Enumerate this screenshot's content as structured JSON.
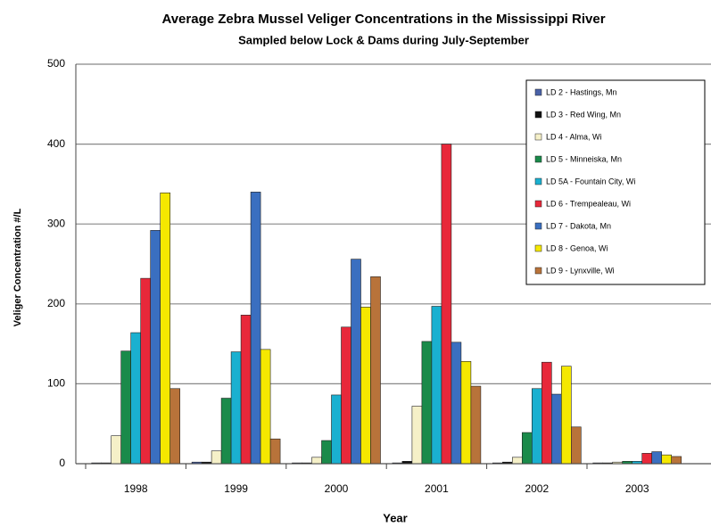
{
  "chart_data": {
    "type": "bar",
    "title": "Average Zebra Mussel Veliger Concentrations in the Mississippi River",
    "subtitle": "Sampled below Lock & Dams during July-September",
    "x_label": "Year",
    "y_label": "Veliger Concentration #/L",
    "categories": [
      "1998",
      "1999",
      "2000",
      "2001",
      "2002",
      "2003"
    ],
    "series": [
      {
        "name": "LD 2 - Hastings, Mn",
        "color": "#4a62a8",
        "values": [
          1,
          2,
          1,
          1,
          1,
          1
        ]
      },
      {
        "name": "LD 3 - Red Wing, Mn",
        "color": "#111111",
        "values": [
          1,
          2,
          1,
          3,
          2,
          1
        ]
      },
      {
        "name": "LD 4 - Alma, Wi",
        "color": "#f5f0c8",
        "values": [
          35,
          16,
          8,
          72,
          8,
          2
        ]
      },
      {
        "name": "LD 5 - Minneiska, Mn",
        "color": "#1a8a4a",
        "values": [
          141,
          82,
          29,
          153,
          39,
          3
        ]
      },
      {
        "name": "LD 5A - Fountain City, Wi",
        "color": "#1ab0d0",
        "values": [
          164,
          140,
          86,
          197,
          94,
          3
        ]
      },
      {
        "name": "LD 6 - Trempealeau, Wi",
        "color": "#e8283a",
        "values": [
          232,
          186,
          171,
          400,
          127,
          13
        ]
      },
      {
        "name": "LD 7 - Dakota, Mn",
        "color": "#3a6fc0",
        "values": [
          292,
          340,
          256,
          152,
          87,
          15
        ]
      },
      {
        "name": "LD 8 - Genoa, Wi",
        "color": "#f5e800",
        "values": [
          339,
          143,
          196,
          128,
          122,
          11
        ]
      },
      {
        "name": "LD 9 - Lynxville, Wi",
        "color": "#b8733a",
        "values": [
          94,
          31,
          234,
          97,
          46,
          9
        ]
      }
    ],
    "ylim": [
      0,
      500
    ],
    "yticks": [
      0,
      100,
      200,
      300,
      400,
      500
    ],
    "grid": true,
    "legend": "upper right"
  }
}
